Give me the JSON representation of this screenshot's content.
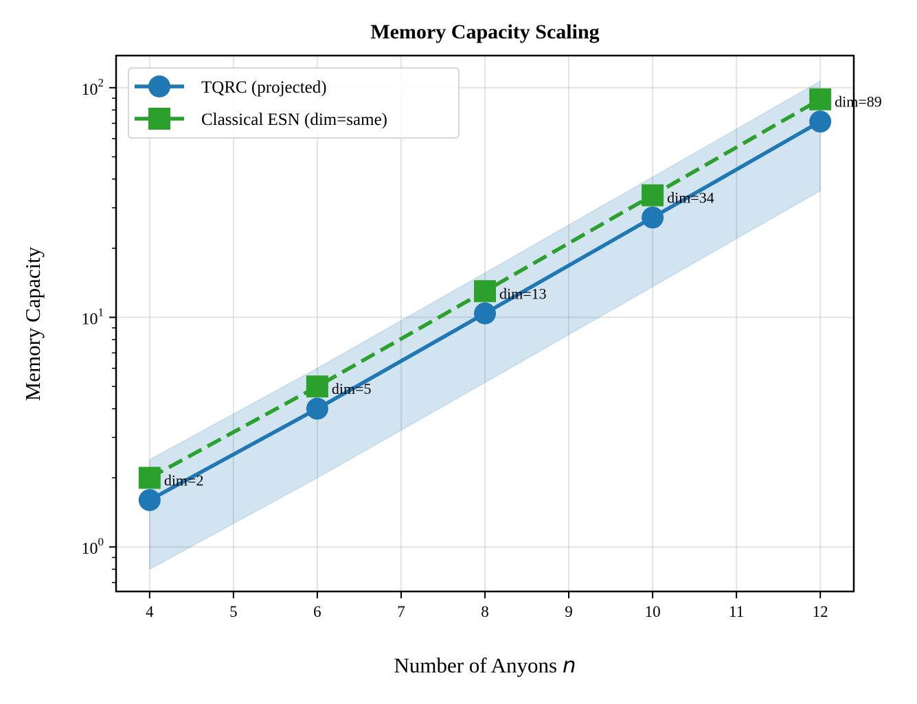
{
  "chart_data": {
    "type": "line",
    "title": "Memory Capacity Scaling",
    "xlabel": "Number of Anyons",
    "xlabel_var": "n",
    "ylabel": "Memory Capacity",
    "x": [
      4,
      6,
      8,
      10,
      12
    ],
    "xlim": [
      3.6,
      12.4
    ],
    "ylim": [
      0.64,
      138
    ],
    "yscale": "log",
    "xticks": [
      4,
      5,
      6,
      7,
      8,
      9,
      10,
      11,
      12
    ],
    "yticks": [
      {
        "value": 1,
        "base": "10",
        "exp": "0"
      },
      {
        "value": 10,
        "base": "10",
        "exp": "1"
      },
      {
        "value": 100,
        "base": "10",
        "exp": "2"
      }
    ],
    "grid": true,
    "legend_position": "top-left",
    "series": [
      {
        "name": "TQRC (projected)",
        "values": [
          1.6,
          4.0,
          10.4,
          27.2,
          71.2
        ],
        "color": "#1f77b4",
        "marker": "circle",
        "linestyle": "solid",
        "band_lower": [
          0.8,
          2.0,
          5.2,
          13.6,
          35.6
        ],
        "band_upper": [
          2.4,
          6.0,
          15.6,
          40.8,
          106.8
        ]
      },
      {
        "name": "Classical ESN (dim=same)",
        "values": [
          2,
          5,
          13,
          34,
          89
        ],
        "color": "#2ca02c",
        "marker": "square",
        "linestyle": "dashed"
      }
    ],
    "annotations": [
      "dim=2",
      "dim=5",
      "dim=13",
      "dim=34",
      "dim=89"
    ]
  }
}
